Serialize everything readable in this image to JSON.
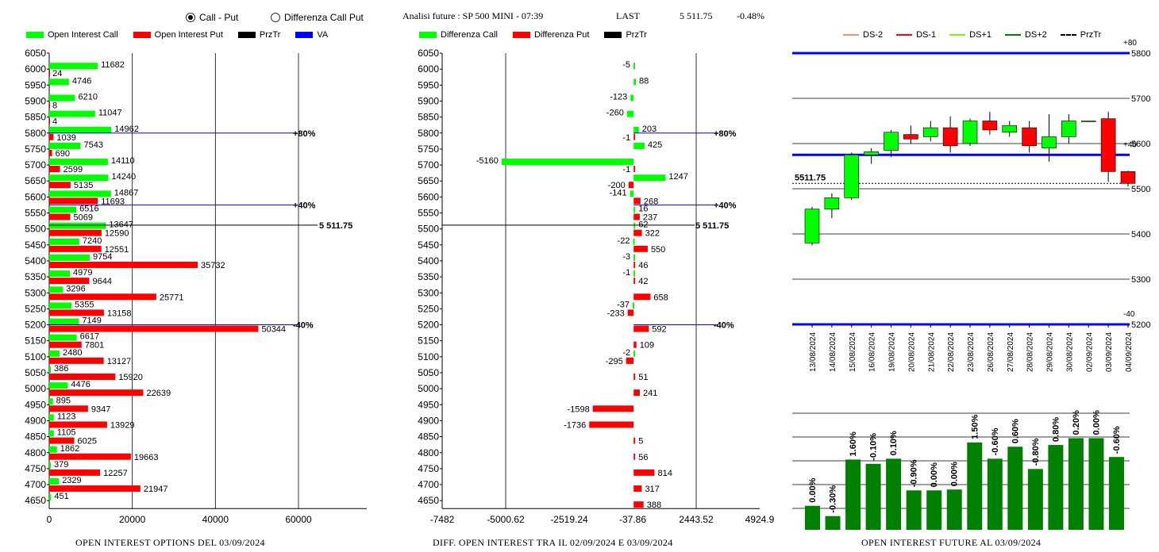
{
  "controls": {
    "radio_call_put": "Call - Put",
    "radio_diff": "Differenza Call Put",
    "selected": "call_put"
  },
  "header": {
    "analysis": "Analisi future : SP 500 MINI - 07:39",
    "last_label": "LAST",
    "last_value": "5 511.75",
    "change": "-0.48%"
  },
  "colors": {
    "call": "#00ff00",
    "put": "#ff0000",
    "prztr": "#000000",
    "va": "#0000ff",
    "dark_green": "#008000"
  },
  "legend_left": [
    {
      "label": "Open Interest Call",
      "color": "#00ff00"
    },
    {
      "label": "Open Interest Put",
      "color": "#ff0000"
    },
    {
      "label": "PrzTr",
      "color": "#000000"
    },
    {
      "label": "VA",
      "color": "#0000ff"
    }
  ],
  "legend_mid": [
    {
      "label": "Differenza Call",
      "color": "#00ff00"
    },
    {
      "label": "Differenza Put",
      "color": "#ff0000"
    },
    {
      "label": "PrzTr",
      "color": "#000000"
    }
  ],
  "legend_right": [
    {
      "label": "DS-2",
      "color": "#ff8c69",
      "dash": false
    },
    {
      "label": "DS-1",
      "color": "#ff0000",
      "dash": false
    },
    {
      "label": "DS+1",
      "color": "#7cfc00",
      "dash": false
    },
    {
      "label": "DS+2",
      "color": "#008000",
      "dash": false
    },
    {
      "label": "PrzTr",
      "color": "#000000",
      "dash": true
    }
  ],
  "footers": {
    "left": "OPEN INTEREST OPTIONS DEL 03/09/2024",
    "mid": "DIFF. OPEN INTEREST TRA IL 02/09/2024 E 03/09/2024",
    "right": "OPEN INTEREST FUTURE AL 03/09/2024"
  },
  "chart_data": [
    {
      "type": "bar",
      "orientation": "horizontal",
      "categories": [
        6050,
        6000,
        5950,
        5900,
        5850,
        5800,
        5750,
        5700,
        5650,
        5600,
        5550,
        5500,
        5450,
        5400,
        5350,
        5300,
        5250,
        5200,
        5150,
        5100,
        5050,
        5000,
        4950,
        4900,
        4850,
        4800,
        4750,
        4700,
        4650
      ],
      "series": [
        {
          "name": "Open Interest Call",
          "values": [
            null,
            11682,
            4746,
            6210,
            11047,
            14962,
            7543,
            14110,
            14240,
            14867,
            6516,
            13647,
            7240,
            9754,
            4979,
            3296,
            5355,
            7149,
            6617,
            2480,
            386,
            4476,
            895,
            1123,
            1105,
            1862,
            379,
            2329,
            451
          ]
        },
        {
          "name": "Open Interest Put",
          "values": [
            null,
            24,
            null,
            8,
            4,
            1039,
            690,
            2599,
            5135,
            11693,
            5069,
            12590,
            12551,
            35732,
            9644,
            25771,
            13158,
            50344,
            7801,
            13127,
            15920,
            22639,
            9347,
            13929,
            6025,
            19663,
            12257,
            21947,
            null
          ]
        }
      ],
      "xticks": [
        0,
        20000,
        40000,
        60000
      ],
      "xlim": [
        0,
        60000
      ],
      "markers": [
        {
          "label": "+80%",
          "strike": 5800
        },
        {
          "label": "+40%",
          "strike": 5575
        },
        {
          "label": "-40%",
          "strike": 5200
        }
      ],
      "last": {
        "label": "5 511.75",
        "strike": 5511.75
      }
    },
    {
      "type": "bar",
      "orientation": "horizontal",
      "categories": [
        6050,
        6000,
        5950,
        5900,
        5850,
        5800,
        5750,
        5700,
        5650,
        5600,
        5550,
        5500,
        5450,
        5400,
        5350,
        5300,
        5250,
        5200,
        5150,
        5100,
        5050,
        5000,
        4950,
        4900,
        4850,
        4800,
        4750,
        4700,
        4650
      ],
      "series": [
        {
          "name": "Differenza Call",
          "values": [
            null,
            -5,
            88,
            -123,
            -260,
            203,
            425,
            -5160,
            1247,
            -141,
            16,
            62,
            -22,
            -3,
            -1,
            null,
            -37,
            null,
            null,
            -2,
            null,
            null,
            null,
            null,
            null,
            null,
            null,
            null,
            null
          ]
        },
        {
          "name": "Differenza Put",
          "values": [
            null,
            null,
            null,
            null,
            null,
            -1,
            null,
            -1,
            -200,
            268,
            237,
            322,
            550,
            46,
            42,
            658,
            -233,
            592,
            109,
            -295,
            51,
            241,
            -1598,
            -1736,
            5,
            56,
            814,
            317,
            388
          ]
        }
      ],
      "xticks": [
        "-7482",
        "-5000.62",
        "-2519.24",
        "-37.86",
        "2443.52",
        "4924.9"
      ],
      "xlim": [
        -7482,
        4924.9
      ],
      "markers": [
        {
          "label": "+80%",
          "strike": 5800
        },
        {
          "label": "+40%",
          "strike": 5575
        },
        {
          "label": "-40%",
          "strike": 5200
        }
      ],
      "last": {
        "label": "5 511.75",
        "strike": 5511.75
      }
    },
    {
      "type": "candlestick",
      "categories": [
        "13/08/2024",
        "14/08/2024",
        "15/08/2024",
        "16/08/2024",
        "19/08/2024",
        "20/08/2024",
        "21/08/2024",
        "22/08/2024",
        "23/08/2024",
        "26/08/2024",
        "27/08/2024",
        "28/08/2024",
        "29/08/2024",
        "30/08/2024",
        "02/09/2024",
        "03/09/2024",
        "04/09/2024"
      ],
      "ohlc": [
        [
          5380,
          5460,
          5375,
          5455
        ],
        [
          5455,
          5490,
          5435,
          5480
        ],
        [
          5480,
          5580,
          5475,
          5575
        ],
        [
          5575,
          5590,
          5555,
          5582
        ],
        [
          5585,
          5630,
          5570,
          5625
        ],
        [
          5620,
          5640,
          5600,
          5610
        ],
        [
          5615,
          5650,
          5605,
          5635
        ],
        [
          5635,
          5660,
          5580,
          5595
        ],
        [
          5600,
          5655,
          5595,
          5650
        ],
        [
          5650,
          5670,
          5620,
          5630
        ],
        [
          5625,
          5650,
          5615,
          5640
        ],
        [
          5635,
          5650,
          5580,
          5595
        ],
        [
          5590,
          5665,
          5560,
          5615
        ],
        [
          5615,
          5665,
          5600,
          5650
        ],
        [
          5650,
          5650,
          5650,
          5650
        ],
        [
          5655,
          5670,
          5515,
          5538
        ],
        [
          5538,
          5540,
          5505,
          5511.75
        ]
      ],
      "yticks": [
        5200,
        5300,
        5400,
        5500,
        5600,
        5700,
        5800
      ],
      "ylim": [
        5200,
        5800
      ],
      "bands": [
        {
          "label": "+80",
          "value": 5800
        },
        {
          "label": "+40",
          "value": 5575
        },
        {
          "label": "-40",
          "value": 5200
        }
      ],
      "last": {
        "label": "5511.75",
        "value": 5511.75
      }
    },
    {
      "type": "bar",
      "categories": [
        "13/08/2024",
        "14/08/2024",
        "15/08/2024",
        "16/08/2024",
        "19/08/2024",
        "20/08/2024",
        "21/08/2024",
        "22/08/2024",
        "23/08/2024",
        "26/08/2024",
        "27/08/2024",
        "28/08/2024",
        "29/08/2024",
        "30/08/2024",
        "02/09/2024",
        "03/09/2024"
      ],
      "values": [
        0.0,
        -0.3,
        1.6,
        -0.1,
        0.1,
        -0.9,
        0.0,
        0.0,
        1.5,
        -0.6,
        0.6,
        -0.8,
        0.8,
        0.2,
        0.0,
        -0.6
      ],
      "labels": [
        "0.00%",
        "-0.30%",
        "1.60%",
        "-0.10%",
        "0.10%",
        "-0.90%",
        "0.00%",
        "0.00%",
        "1.50%",
        "-0.60%",
        "0.60%",
        "-0.80%",
        "0.80%",
        "0.20%",
        "0.00%",
        "-0.60%"
      ],
      "heights": [
        0.28,
        0.16,
        0.82,
        0.77,
        0.83,
        0.46,
        0.46,
        0.47,
        1.02,
        0.83,
        0.97,
        0.71,
        0.99,
        1.07,
        1.07,
        0.85
      ]
    }
  ]
}
